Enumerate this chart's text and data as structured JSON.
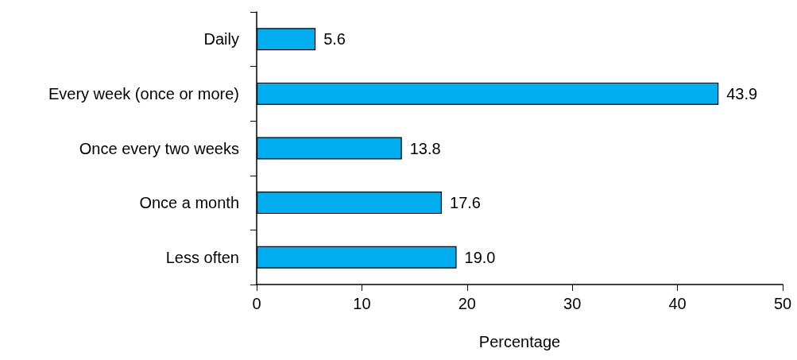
{
  "chart_data": {
    "type": "bar",
    "orientation": "horizontal",
    "xlabel": "Percentage",
    "categories": [
      "Daily",
      "Every week (once or more)",
      "Once every two weeks",
      "Once a month",
      "Less often"
    ],
    "values": [
      5.6,
      43.9,
      13.8,
      17.6,
      19.0
    ],
    "value_labels": [
      "5.6",
      "43.9",
      "13.8",
      "17.6",
      "19.0"
    ],
    "color": "#00aeef",
    "xlim": [
      0,
      50
    ],
    "xticks": [
      0,
      10,
      20,
      30,
      40,
      50
    ],
    "grid": false
  }
}
